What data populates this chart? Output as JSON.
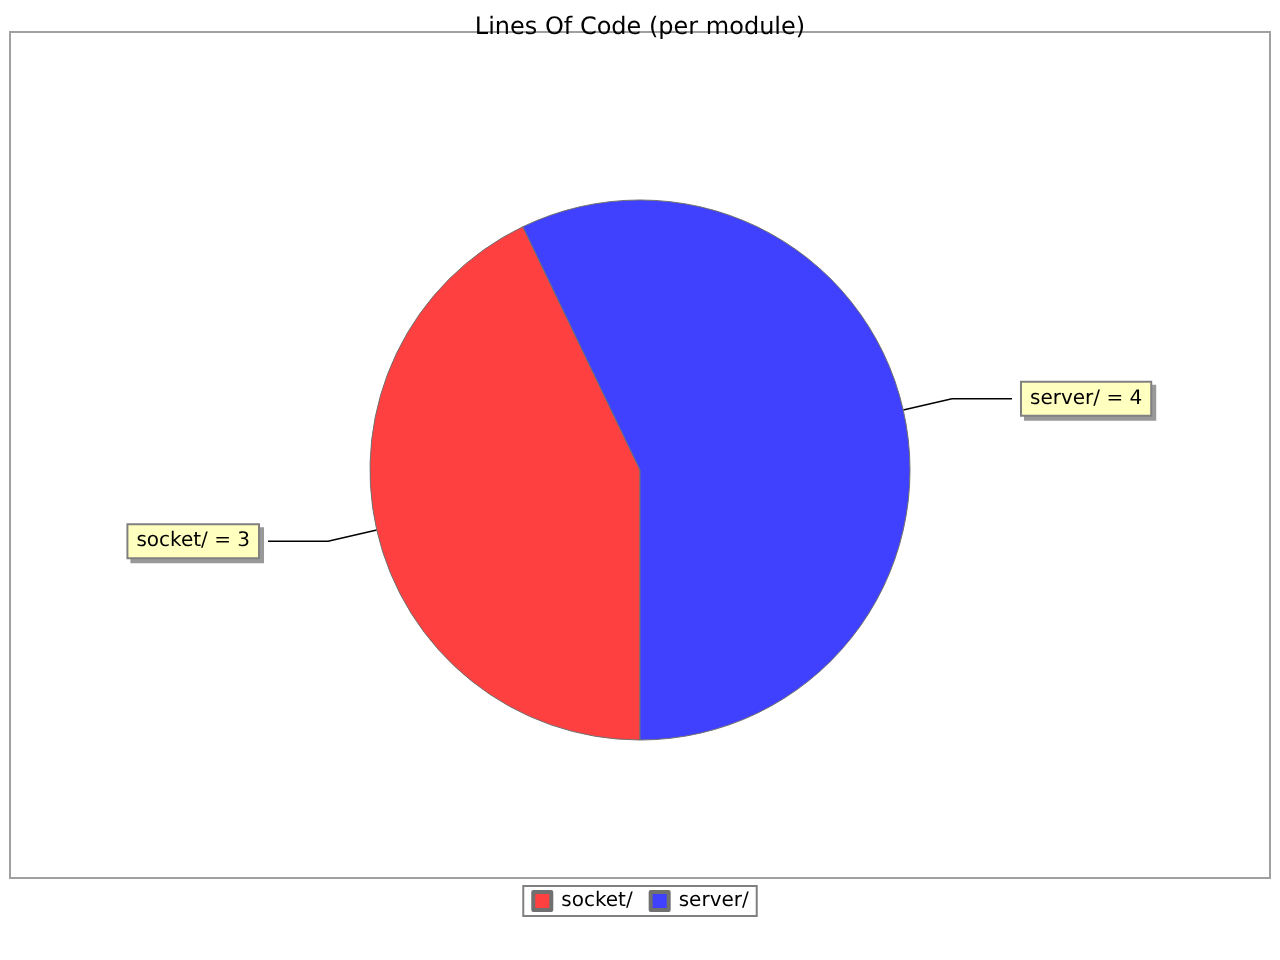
{
  "chart_data": {
    "type": "pie",
    "title": "Lines Of Code (per module)",
    "categories": [
      "socket/",
      "server/"
    ],
    "values": [
      3,
      4
    ],
    "colors": [
      "#ff4040",
      "#4040ff"
    ],
    "value_labels": [
      "socket/ = 3",
      "server/ = 4"
    ],
    "legend": "bottom"
  }
}
